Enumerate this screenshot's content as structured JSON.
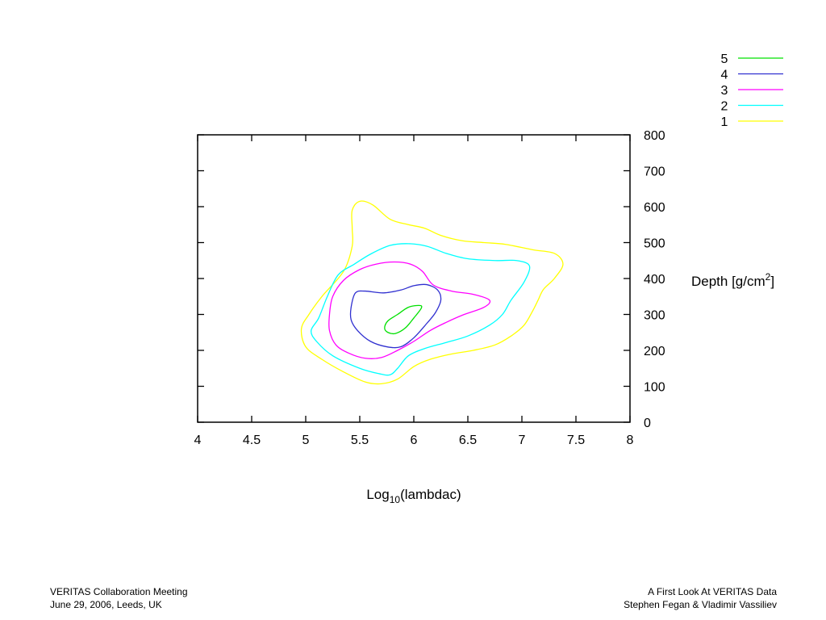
{
  "chart_data": {
    "type": "contour",
    "xlabel": {
      "main": "Log",
      "sub": "10",
      "rest": "(lambdac)"
    },
    "ylabel": {
      "main": "Depth [g/cm",
      "sup": "2",
      "rest": "]"
    },
    "xlim": [
      4,
      8
    ],
    "ylim": [
      0,
      800
    ],
    "x_ticks": [
      4,
      4.5,
      5,
      5.5,
      6,
      6.5,
      7,
      7.5,
      8
    ],
    "x_tick_labels": [
      "4",
      "4.5",
      "5",
      "5.5",
      "6",
      "6.5",
      "7",
      "7.5",
      "8"
    ],
    "y_ticks": [
      0,
      100,
      200,
      300,
      400,
      500,
      600,
      700,
      800
    ],
    "y_tick_labels": [
      "0",
      "100",
      "200",
      "300",
      "400",
      "500",
      "600",
      "700",
      "800"
    ],
    "y_axis_side": "right",
    "grid": false,
    "legend_position": "top-right, above plot",
    "series": [
      {
        "name": "5",
        "color": "#00e000",
        "points": [
          [
            5.73,
            262
          ],
          [
            5.76,
            250
          ],
          [
            5.83,
            247
          ],
          [
            5.92,
            262
          ],
          [
            6.0,
            290
          ],
          [
            6.07,
            318
          ],
          [
            6.05,
            325
          ],
          [
            5.95,
            320
          ],
          [
            5.85,
            300
          ],
          [
            5.76,
            282
          ]
        ]
      },
      {
        "name": "4",
        "color": "#3030d0",
        "points": [
          [
            5.46,
            360
          ],
          [
            5.55,
            365
          ],
          [
            5.72,
            360
          ],
          [
            5.88,
            368
          ],
          [
            6.0,
            380
          ],
          [
            6.12,
            383
          ],
          [
            6.22,
            368
          ],
          [
            6.25,
            340
          ],
          [
            6.2,
            305
          ],
          [
            6.12,
            275
          ],
          [
            6.0,
            235
          ],
          [
            5.88,
            210
          ],
          [
            5.75,
            210
          ],
          [
            5.6,
            225
          ],
          [
            5.48,
            255
          ],
          [
            5.42,
            285
          ],
          [
            5.42,
            320
          ]
        ]
      },
      {
        "name": "3",
        "color": "#ff00ff",
        "points": [
          [
            5.35,
            395
          ],
          [
            5.5,
            425
          ],
          [
            5.65,
            440
          ],
          [
            5.82,
            446
          ],
          [
            5.97,
            440
          ],
          [
            6.08,
            420
          ],
          [
            6.18,
            382
          ],
          [
            6.35,
            365
          ],
          [
            6.55,
            356
          ],
          [
            6.7,
            340
          ],
          [
            6.65,
            320
          ],
          [
            6.45,
            298
          ],
          [
            6.3,
            278
          ],
          [
            6.15,
            255
          ],
          [
            6.0,
            225
          ],
          [
            5.85,
            200
          ],
          [
            5.7,
            180
          ],
          [
            5.55,
            178
          ],
          [
            5.4,
            192
          ],
          [
            5.28,
            215
          ],
          [
            5.22,
            255
          ],
          [
            5.22,
            300
          ],
          [
            5.25,
            350
          ]
        ]
      },
      {
        "name": "2",
        "color": "#00ffff",
        "points": [
          [
            5.3,
            410
          ],
          [
            5.45,
            440
          ],
          [
            5.6,
            468
          ],
          [
            5.78,
            492
          ],
          [
            5.95,
            497
          ],
          [
            6.12,
            490
          ],
          [
            6.3,
            470
          ],
          [
            6.5,
            455
          ],
          [
            6.75,
            450
          ],
          [
            6.95,
            450
          ],
          [
            7.07,
            435
          ],
          [
            7.02,
            390
          ],
          [
            6.9,
            340
          ],
          [
            6.82,
            300
          ],
          [
            6.7,
            270
          ],
          [
            6.5,
            240
          ],
          [
            6.3,
            222
          ],
          [
            6.1,
            205
          ],
          [
            5.95,
            185
          ],
          [
            5.85,
            150
          ],
          [
            5.78,
            132
          ],
          [
            5.68,
            135
          ],
          [
            5.5,
            150
          ],
          [
            5.25,
            185
          ],
          [
            5.1,
            225
          ],
          [
            5.05,
            255
          ],
          [
            5.12,
            290
          ],
          [
            5.2,
            350
          ]
        ]
      },
      {
        "name": "1",
        "color": "#ffff00",
        "points": [
          [
            5.43,
            490
          ],
          [
            5.43,
            540
          ],
          [
            5.43,
            590
          ],
          [
            5.5,
            615
          ],
          [
            5.62,
            605
          ],
          [
            5.78,
            565
          ],
          [
            5.95,
            550
          ],
          [
            6.1,
            540
          ],
          [
            6.25,
            520
          ],
          [
            6.45,
            505
          ],
          [
            6.65,
            500
          ],
          [
            6.85,
            495
          ],
          [
            7.1,
            480
          ],
          [
            7.3,
            470
          ],
          [
            7.38,
            440
          ],
          [
            7.3,
            400
          ],
          [
            7.2,
            370
          ],
          [
            7.15,
            340
          ],
          [
            7.1,
            310
          ],
          [
            7.02,
            270
          ],
          [
            6.9,
            240
          ],
          [
            6.75,
            215
          ],
          [
            6.55,
            200
          ],
          [
            6.35,
            190
          ],
          [
            6.15,
            175
          ],
          [
            6.0,
            155
          ],
          [
            5.85,
            120
          ],
          [
            5.7,
            107
          ],
          [
            5.55,
            112
          ],
          [
            5.35,
            140
          ],
          [
            5.15,
            175
          ],
          [
            5.0,
            210
          ],
          [
            4.96,
            260
          ],
          [
            5.03,
            300
          ],
          [
            5.15,
            350
          ],
          [
            5.35,
            420
          ]
        ]
      }
    ]
  },
  "footer": {
    "left_line1": "VERITAS Collaboration Meeting",
    "left_line2": "June 29, 2006, Leeds, UK",
    "right_line1": "A First Look At VERITAS Data",
    "right_line2": "Stephen Fegan & Vladimir Vassiliev"
  }
}
